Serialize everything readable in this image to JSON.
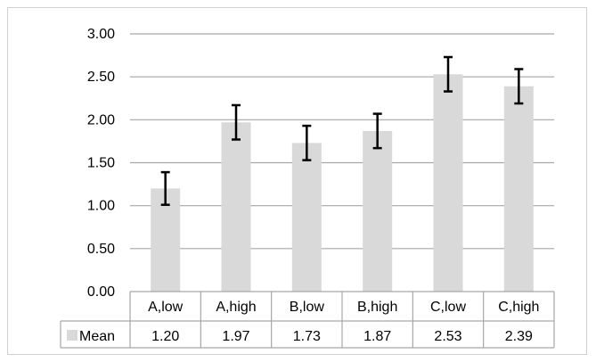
{
  "chart_data": {
    "type": "bar",
    "categories": [
      "A,low",
      "A,high",
      "B,low",
      "B,high",
      "C,low",
      "C,high"
    ],
    "series": [
      {
        "name": "Mean",
        "values": [
          1.2,
          1.97,
          1.73,
          1.87,
          2.53,
          2.39
        ],
        "value_labels": [
          "1.20",
          "1.97",
          "1.73",
          "1.87",
          "2.53",
          "2.39"
        ],
        "error": [
          0.19,
          0.2,
          0.2,
          0.2,
          0.2,
          0.2
        ],
        "color": "#d9d9d9"
      }
    ],
    "ylim": [
      0,
      3
    ],
    "yticks": [
      "0.00",
      "0.50",
      "1.00",
      "1.50",
      "2.00",
      "2.50",
      "3.00"
    ],
    "title": "",
    "xlabel": "",
    "ylabel": "",
    "grid": true,
    "legend": "data-table",
    "gridline_color": "#a6a6a6",
    "errorbar_color": "#000000"
  }
}
